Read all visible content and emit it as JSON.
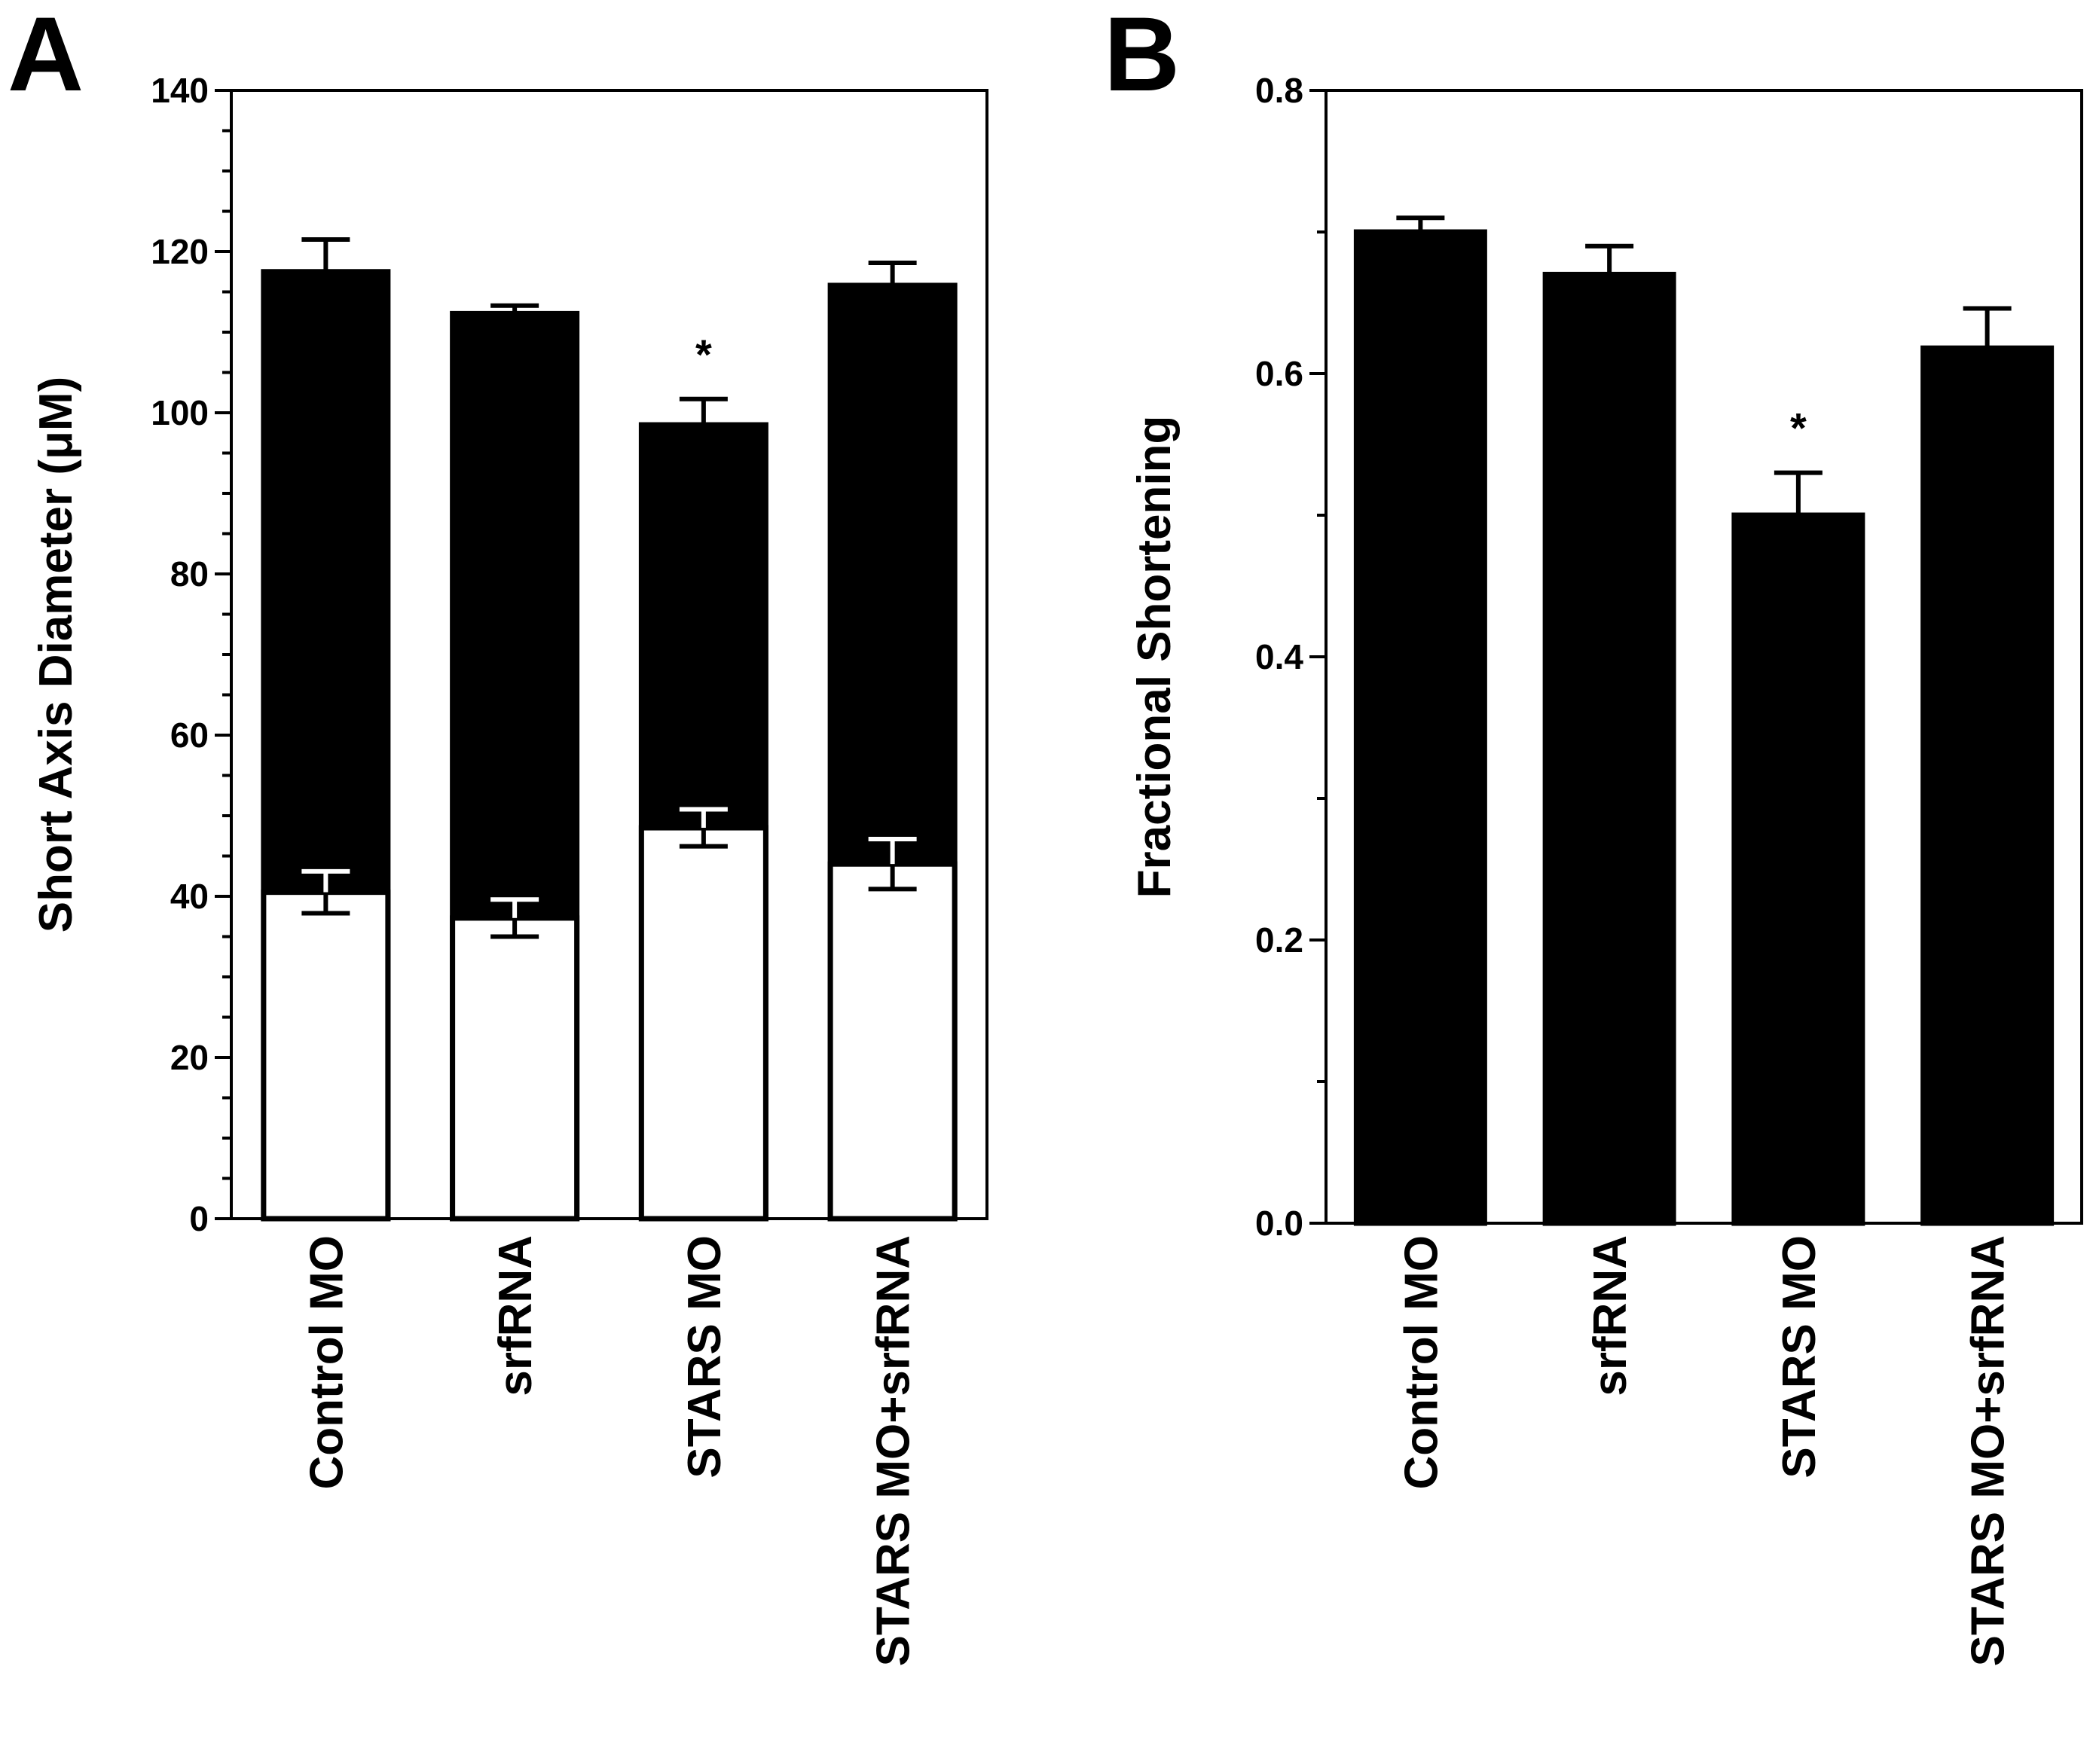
{
  "chart_data": [
    {
      "panel": "A",
      "type": "bar",
      "layout": "overlaid",
      "categories": [
        "Control MO",
        "srfRNA",
        "STARS MO",
        "STARS MO+srfRNA"
      ],
      "series": [
        {
          "values": [
            117.5,
            112.3,
            98.5,
            115.8
          ],
          "errors": [
            4.0,
            1.0,
            3.2,
            2.8
          ],
          "color": "#000000"
        },
        {
          "values": [
            40.5,
            37.3,
            48.5,
            44.0
          ],
          "errors": [
            2.6,
            2.3,
            2.3,
            3.1
          ],
          "color": "#ffffff"
        }
      ],
      "ylabel": "Short Axis Diameter (μM)",
      "ylim": [
        0,
        140
      ],
      "yticks": [
        "0",
        "20",
        "40",
        "60",
        "80",
        "100",
        "120",
        "140"
      ],
      "significance": {
        "category": "STARS MO",
        "label": "*"
      },
      "grid": false
    },
    {
      "panel": "B",
      "type": "bar",
      "categories": [
        "Control MO",
        "srfRNA",
        "STARS MO",
        "STARS MO+srfRNA"
      ],
      "series": [
        {
          "values": [
            0.7,
            0.67,
            0.5,
            0.618
          ],
          "errors": [
            0.01,
            0.02,
            0.03,
            0.028
          ],
          "color": "#000000"
        }
      ],
      "ylabel": "Fractional Shortening",
      "ylim": [
        0,
        0.8
      ],
      "yticks": [
        "0.0",
        "0.2",
        "0.4",
        "0.6",
        "0.8"
      ],
      "significance": {
        "category": "STARS MO",
        "label": "*"
      },
      "grid": false
    }
  ]
}
